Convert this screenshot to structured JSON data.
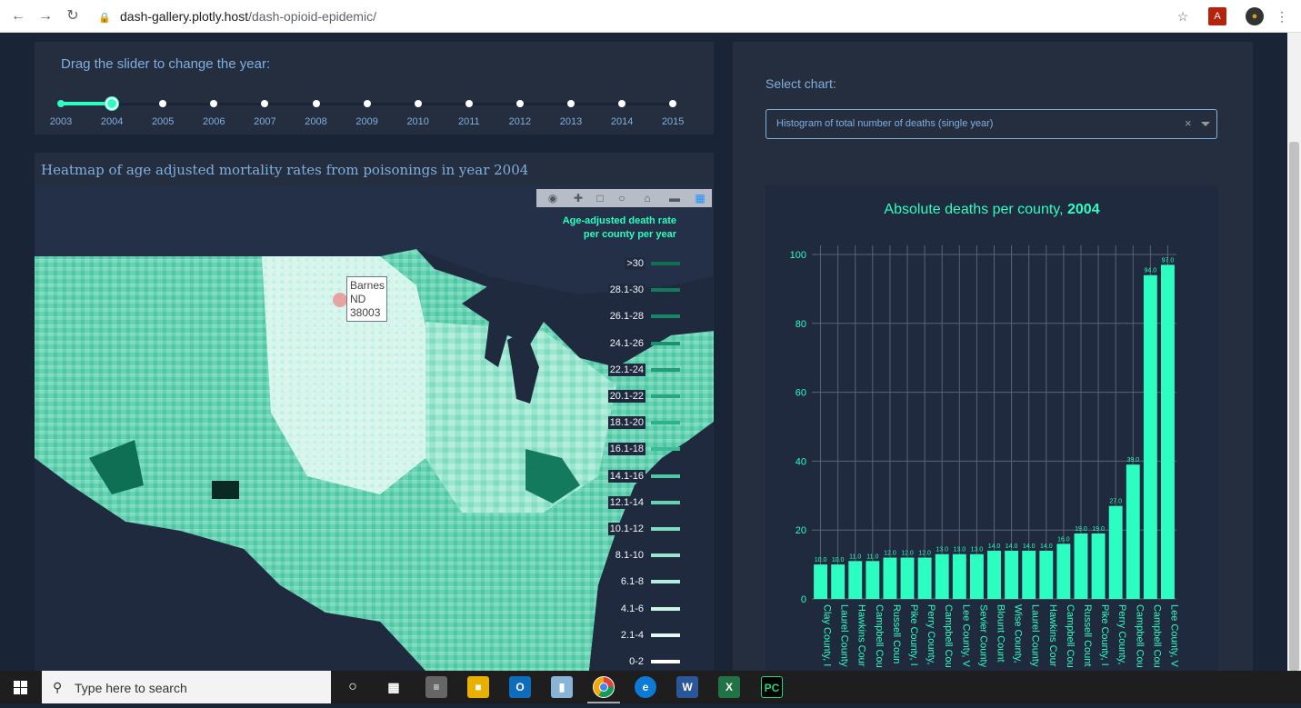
{
  "browser": {
    "host": "dash-gallery.plotly.host",
    "path": "/dash-opioid-epidemic/"
  },
  "slider": {
    "title": "Drag the slider to change the year:",
    "years": [
      "2003",
      "2004",
      "2005",
      "2006",
      "2007",
      "2008",
      "2009",
      "2010",
      "2011",
      "2012",
      "2013",
      "2014",
      "2015"
    ],
    "selected": "2004"
  },
  "heatmap": {
    "title": "Heatmap of age adjusted mortality rates from poisonings in year 2004",
    "tooltip": [
      "Barnes",
      "ND",
      "38003"
    ],
    "legend_title": [
      "Age-adjusted death rate",
      "per county per year"
    ],
    "legend_items": [
      {
        "label": ">30",
        "color": "#0e6f55"
      },
      {
        "label": "28.1-30",
        "color": "#137a5e"
      },
      {
        "label": "26.1-28",
        "color": "#188567"
      },
      {
        "label": "24.1-26",
        "color": "#1d9070"
      },
      {
        "label": "22.1-24",
        "color": "#229b79"
      },
      {
        "label": "20.1-22",
        "color": "#27a682"
      },
      {
        "label": "18.1-20",
        "color": "#2cb18b"
      },
      {
        "label": "16.1-18",
        "color": "#3bbc97"
      },
      {
        "label": "14.1-16",
        "color": "#4ec7a3"
      },
      {
        "label": "12.1-14",
        "color": "#66d2b1"
      },
      {
        "label": "10.1-12",
        "color": "#80dcc0"
      },
      {
        "label": "8.1-10",
        "color": "#9ae5ce"
      },
      {
        "label": "6.1-8",
        "color": "#b3eddc"
      },
      {
        "label": "4.1-6",
        "color": "#ccf4e8"
      },
      {
        "label": "2.1-4",
        "color": "#e3f9f2"
      },
      {
        "label": "0-2",
        "color": "#ffffff"
      }
    ]
  },
  "right": {
    "select_label": "Select chart:",
    "dropdown_value": "Histogram of total number of deaths (single year)",
    "dropdown_clear": "×"
  },
  "chart_data": {
    "type": "bar",
    "title": "Absolute deaths per county, ",
    "title_bold": "2004",
    "ylim": [
      0,
      100
    ],
    "yticks": [
      0,
      20,
      40,
      60,
      80,
      100
    ],
    "categories": [
      "Clay County, I",
      "Laurel County",
      "Hawkins Cour",
      "Campbell Cou",
      "Russell Coun",
      "Pike County, I",
      "Perry County,",
      "Campbell Cou",
      "Lee County, V",
      "Sevier County",
      "Blount Count",
      "Wise County,",
      "Laurel County",
      "Hawkins Cour",
      "Campbell Cou",
      "Russell Count",
      "Pike County, I",
      "Perry County,",
      "Campbell Cou",
      "Campbell Cou",
      "Lee County, V"
    ],
    "values": [
      10.0,
      10.0,
      11.0,
      11.0,
      12.0,
      12.0,
      12.0,
      13.0,
      13.0,
      13.0,
      14.0,
      14.0,
      14.0,
      14.0,
      16.0,
      19.0,
      19.0,
      27.0,
      39.0,
      94.0,
      97.0
    ],
    "labels": [
      "10.0",
      "10.0",
      "11.0",
      "11.0",
      "12.0",
      "12.0",
      "12.0",
      "13.0",
      "13.0",
      "13.0",
      "14.0",
      "14.0",
      "14.0",
      "14.0",
      "16.0",
      "19.0",
      "19.0",
      "27.0",
      "39.0",
      "94.0",
      "97.0"
    ],
    "bar_color": "#2cfec1",
    "grid": true
  },
  "taskbar": {
    "search_placeholder": "Type here to search"
  },
  "colors": {
    "accent": "#2cfec1",
    "text_blue": "#7fafdf",
    "panel": "#252e3f",
    "background": "#1a2437"
  }
}
